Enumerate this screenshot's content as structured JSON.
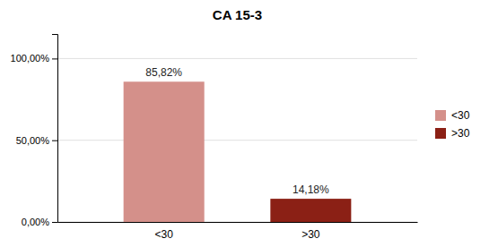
{
  "chart_data": {
    "type": "bar",
    "title": "CA 15-3",
    "categories": [
      "<30",
      ">30"
    ],
    "values": [
      85.82,
      14.18
    ],
    "value_labels": [
      "85,82%",
      "14,18%"
    ],
    "data_labels": true,
    "colors": [
      "#d4908a",
      "#8b2015"
    ],
    "ylim": [
      0,
      115
    ],
    "yticks": [
      {
        "value": 0,
        "label": "0,00%"
      },
      {
        "value": 50,
        "label": "50,00%"
      },
      {
        "value": 100,
        "label": "100,00%"
      }
    ],
    "grid": true,
    "legend": "right"
  }
}
